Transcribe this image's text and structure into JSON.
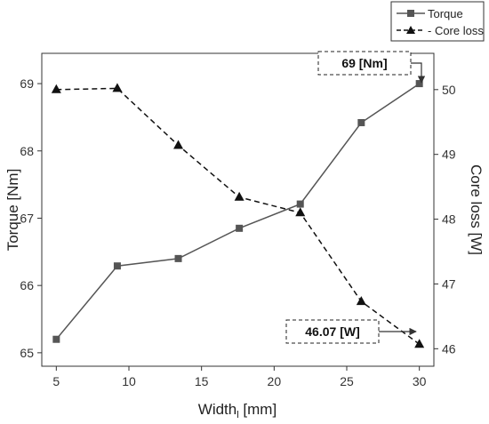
{
  "chart_data": {
    "type": "line",
    "x": [
      5,
      9.2,
      13.4,
      17.6,
      21.8,
      26,
      30
    ],
    "xlabel_main": "Width",
    "xlabel_sub": "l",
    "xlabel_unit": " [mm]",
    "xlim": [
      4,
      31
    ],
    "xticks": [
      "5",
      "10",
      "15",
      "20",
      "25",
      "30"
    ],
    "y_left": {
      "label": "Torque [Nm]",
      "lim": [
        64.8,
        69.45
      ],
      "ticks": [
        "65",
        "66",
        "67",
        "68",
        "69"
      ]
    },
    "y_right": {
      "label": "Core loss [W]",
      "lim": [
        45.73,
        50.56
      ],
      "ticks": [
        "46",
        "47",
        "48",
        "49",
        "50"
      ]
    },
    "series": [
      {
        "name": "Torque",
        "axis": "left",
        "marker": "square",
        "line": "solid",
        "color": "#555555",
        "values": [
          65.2,
          66.29,
          66.4,
          66.85,
          67.21,
          68.42,
          69.0
        ]
      },
      {
        "name": "Core loss",
        "axis": "right",
        "marker": "triangle",
        "line": "dashed",
        "color": "#111111",
        "values": [
          50.0,
          50.02,
          49.14,
          48.34,
          48.1,
          46.73,
          46.07
        ]
      }
    ],
    "legend": {
      "placement": "top-right",
      "entries": [
        "Torque",
        "- Core loss"
      ]
    },
    "annotations": [
      {
        "text": "69  [Nm]",
        "series": "Torque",
        "index": 6
      },
      {
        "text": "46.07  [W]",
        "series": "Core loss",
        "index": 6
      }
    ],
    "grid": false
  }
}
